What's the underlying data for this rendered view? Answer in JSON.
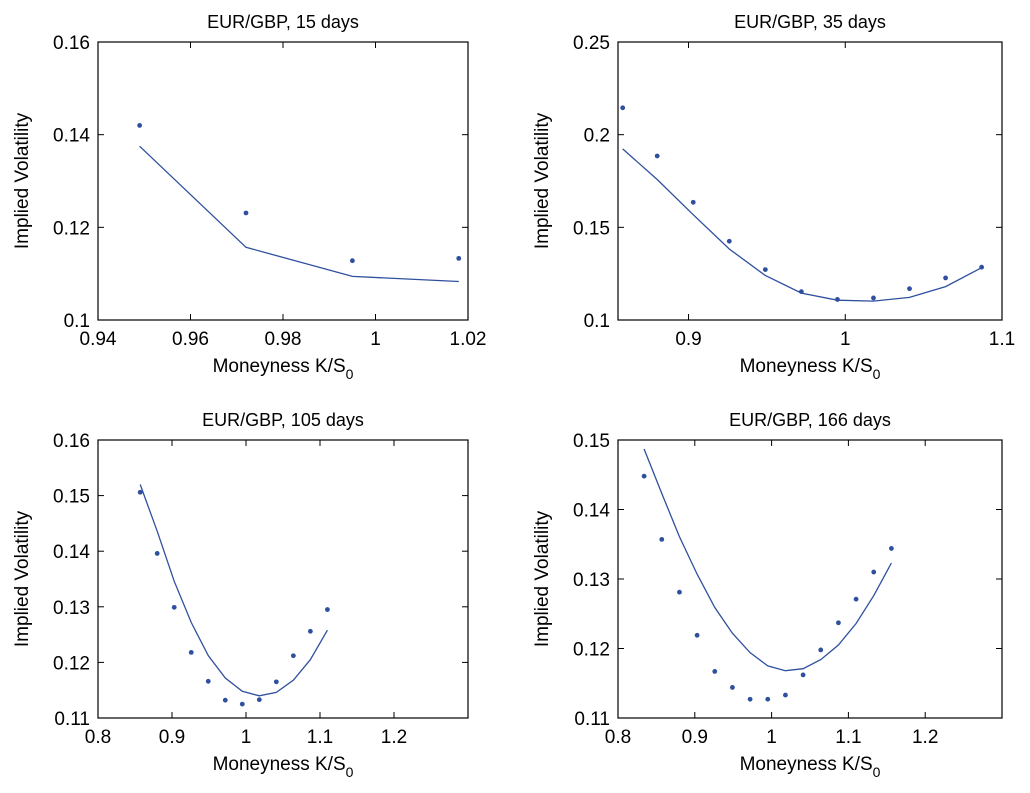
{
  "chart_data": [
    {
      "type": "scatter",
      "title": "EUR/GBP, 15 days",
      "xlabel": "Moneyness K/S",
      "xlabel_sub": "0",
      "ylabel": "Implied Volatility",
      "xlim": [
        0.94,
        1.02
      ],
      "ylim": [
        0.1,
        0.16
      ],
      "xticks": [
        0.94,
        0.96,
        0.98,
        1,
        1.02
      ],
      "xtick_labels": [
        "0.94",
        "0.96",
        "0.98",
        "1",
        "1.02"
      ],
      "yticks": [
        0.1,
        0.12,
        0.14,
        0.16
      ],
      "ytick_labels": [
        "0.1",
        "0.12",
        "0.14",
        "0.16"
      ],
      "grid": false,
      "color": "#2f4f9f",
      "series": [
        {
          "kind": "points",
          "x": [
            0.949,
            0.972,
            0.995,
            1.018
          ],
          "y": [
            0.142,
            0.1231,
            0.1128,
            0.1133
          ]
        },
        {
          "kind": "line",
          "x": [
            0.949,
            0.972,
            0.995,
            1.018
          ],
          "y": [
            0.1375,
            0.1157,
            0.1094,
            0.1083
          ]
        }
      ]
    },
    {
      "type": "scatter",
      "title": "EUR/GBP, 35 days",
      "xlabel": "Moneyness K/S",
      "xlabel_sub": "0",
      "ylabel": "Implied Volatility",
      "xlim": [
        0.855,
        1.1
      ],
      "ylim": [
        0.1,
        0.25
      ],
      "xticks": [
        0.9,
        1,
        1.1
      ],
      "xtick_labels": [
        "0.9",
        "1",
        "1.1"
      ],
      "yticks": [
        0.1,
        0.15,
        0.2,
        0.25
      ],
      "ytick_labels": [
        "0.1",
        "0.15",
        "0.2",
        "0.25"
      ],
      "grid": false,
      "color": "#2f4f9f",
      "series": [
        {
          "kind": "points",
          "x": [
            0.858,
            0.88,
            0.903,
            0.926,
            0.949,
            0.972,
            0.995,
            1.018,
            1.041,
            1.064,
            1.087
          ],
          "y": [
            0.2145,
            0.1885,
            0.1635,
            0.1425,
            0.1272,
            0.1153,
            0.1111,
            0.1119,
            0.1169,
            0.1227,
            0.1285
          ]
        },
        {
          "kind": "line",
          "x": [
            0.858,
            0.88,
            0.903,
            0.926,
            0.949,
            0.972,
            0.995,
            1.018,
            1.041,
            1.064,
            1.087
          ],
          "y": [
            0.1923,
            0.1758,
            0.1568,
            0.1383,
            0.124,
            0.1145,
            0.1107,
            0.1102,
            0.1122,
            0.118,
            0.1282
          ]
        }
      ]
    },
    {
      "type": "scatter",
      "title": "EUR/GBP, 105 days",
      "xlabel": "Moneyness K/S",
      "xlabel_sub": "0",
      "ylabel": "Implied Volatility",
      "xlim": [
        0.8,
        1.3
      ],
      "ylim": [
        0.11,
        0.16
      ],
      "xticks": [
        0.8,
        0.9,
        1,
        1.1,
        1.2
      ],
      "xtick_labels": [
        "0.8",
        "0.9",
        "1",
        "1.1",
        "1.2"
      ],
      "yticks": [
        0.11,
        0.12,
        0.13,
        0.14,
        0.15,
        0.16
      ],
      "ytick_labels": [
        "0.11",
        "0.12",
        "0.13",
        "0.14",
        "0.15",
        "0.16"
      ],
      "grid": false,
      "color": "#2f4f9f",
      "series": [
        {
          "kind": "points",
          "x": [
            0.857,
            0.88,
            0.903,
            0.926,
            0.949,
            0.972,
            0.995,
            1.018,
            1.041,
            1.064,
            1.087,
            1.11
          ],
          "y": [
            0.1506,
            0.1396,
            0.1299,
            0.1218,
            0.1166,
            0.1132,
            0.1125,
            0.1133,
            0.1165,
            0.1212,
            0.1256,
            0.1295
          ]
        },
        {
          "kind": "line",
          "x": [
            0.857,
            0.88,
            0.903,
            0.926,
            0.949,
            0.972,
            0.995,
            1.018,
            1.041,
            1.064,
            1.087,
            1.11
          ],
          "y": [
            0.152,
            0.1436,
            0.1346,
            0.1272,
            0.1212,
            0.1172,
            0.1148,
            0.114,
            0.1146,
            0.1168,
            0.1205,
            0.1258
          ]
        }
      ]
    },
    {
      "type": "scatter",
      "title": "EUR/GBP, 166 days",
      "xlabel": "Moneyness K/S",
      "xlabel_sub": "0",
      "ylabel": "Implied Volatility",
      "xlim": [
        0.8,
        1.3
      ],
      "ylim": [
        0.11,
        0.15
      ],
      "xticks": [
        0.8,
        0.9,
        1,
        1.1,
        1.2
      ],
      "xtick_labels": [
        "0.8",
        "0.9",
        "1",
        "1.1",
        "1.2"
      ],
      "yticks": [
        0.11,
        0.12,
        0.13,
        0.14,
        0.15
      ],
      "ytick_labels": [
        "0.11",
        "0.12",
        "0.13",
        "0.14",
        "0.15"
      ],
      "grid": false,
      "color": "#2f4f9f",
      "series": [
        {
          "kind": "points",
          "x": [
            0.834,
            0.857,
            0.88,
            0.903,
            0.926,
            0.949,
            0.972,
            0.995,
            1.018,
            1.041,
            1.064,
            1.087,
            1.11,
            1.133,
            1.156
          ],
          "y": [
            0.1448,
            0.1357,
            0.1281,
            0.1219,
            0.1167,
            0.1144,
            0.1127,
            0.1127,
            0.1133,
            0.1162,
            0.1198,
            0.1237,
            0.1271,
            0.131,
            0.1344
          ]
        },
        {
          "kind": "line",
          "x": [
            0.834,
            0.857,
            0.88,
            0.903,
            0.926,
            0.949,
            0.972,
            0.995,
            1.018,
            1.041,
            1.064,
            1.087,
            1.11,
            1.133,
            1.156
          ],
          "y": [
            0.1487,
            0.1423,
            0.1361,
            0.1307,
            0.1259,
            0.1222,
            0.1194,
            0.1175,
            0.1168,
            0.1171,
            0.1184,
            0.1205,
            0.1236,
            0.1276,
            0.1323
          ]
        }
      ]
    }
  ]
}
